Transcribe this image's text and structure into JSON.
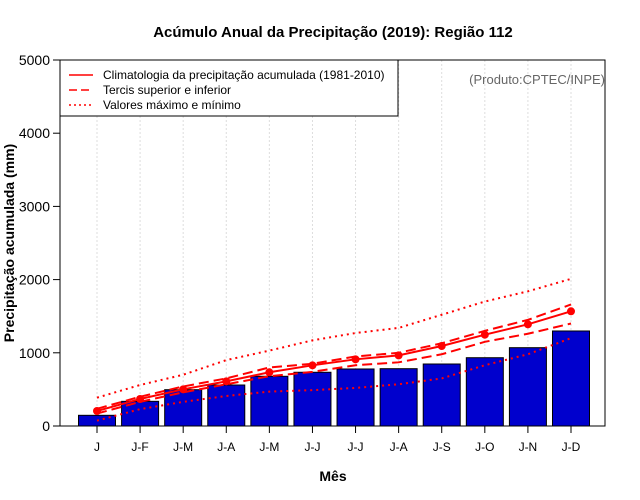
{
  "chart_data": {
    "type": "bar",
    "title": "Acúmulo Anual da Precipitação (2019): Região 112",
    "subtitle": "(Produto:CPTEC/INPE)",
    "xlabel": "Mês",
    "ylabel": "Precipitação acumulada (mm)",
    "ylim": [
      0,
      5000
    ],
    "yticks": [
      0,
      1000,
      2000,
      3000,
      4000,
      5000
    ],
    "grid": true,
    "legend_position": "top-left",
    "categories": [
      "J",
      "J-F",
      "J-M",
      "J-A",
      "J-M",
      "J-J",
      "J-J",
      "J-A",
      "J-S",
      "J-O",
      "J-N",
      "J-D"
    ],
    "values": [
      146,
      337,
      496,
      560,
      679,
      734,
      779,
      783,
      847,
      933,
      1070,
      1298
    ],
    "series": [
      {
        "name": "Climatologia da precipitação acumulada (1981-2010)",
        "style": "solid",
        "values": [
          205,
          369,
          501,
          610,
          734,
          829,
          911,
          965,
          1093,
          1247,
          1389,
          1567
        ]
      },
      {
        "name": "Tercis superior e inferior",
        "style": "dashed",
        "role": "upper",
        "values": [
          235,
          400,
          540,
          650,
          800,
          850,
          950,
          1000,
          1130,
          1300,
          1450,
          1660
        ]
      },
      {
        "name": "Tercis superior e inferior",
        "style": "dashed",
        "role": "lower",
        "values": [
          170,
          330,
          460,
          570,
          680,
          740,
          830,
          870,
          980,
          1150,
          1260,
          1400
        ]
      },
      {
        "name": "Valores máximo e mínimo",
        "style": "dotted",
        "role": "max",
        "values": [
          387,
          560,
          700,
          900,
          1030,
          1170,
          1270,
          1340,
          1520,
          1700,
          1840,
          2010
        ]
      },
      {
        "name": "Valores máximo e mínimo",
        "style": "dotted",
        "role": "min",
        "values": [
          73,
          230,
          330,
          410,
          470,
          490,
          520,
          570,
          650,
          830,
          980,
          1200
        ]
      }
    ],
    "legend": [
      "Climatologia da precipitação acumulada (1981-2010)",
      "Tercis superior e inferior",
      "Valores máximo e mínimo"
    ],
    "colors": {
      "bar": "#0000CD",
      "line": "#FF0000"
    }
  }
}
